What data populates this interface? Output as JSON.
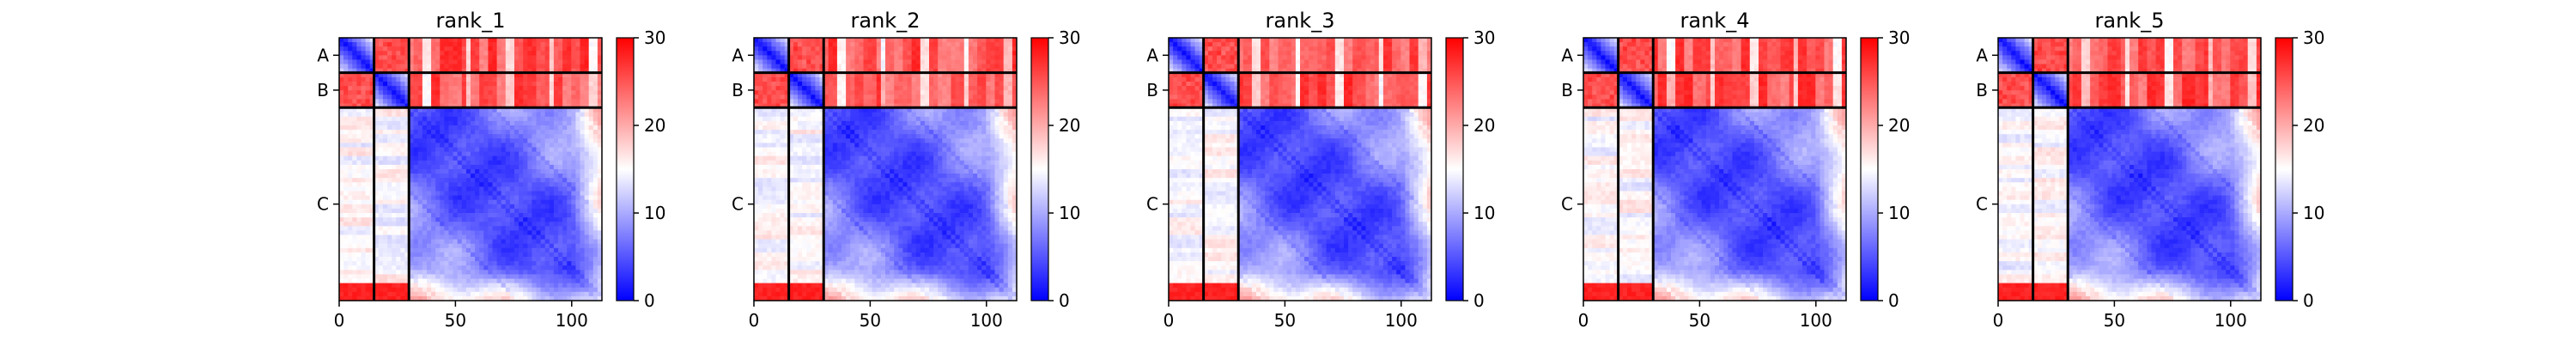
{
  "chart_data": {
    "type": "heatmap",
    "colormap": {
      "name": "bwr",
      "low": "#0000ff",
      "mid": "#ffffff",
      "high": "#ff0000"
    },
    "value_range": [
      0,
      30
    ],
    "colorbar_ticks": [
      "0",
      "10",
      "20",
      "30"
    ],
    "x_ticks": [
      "0",
      "50",
      "100"
    ],
    "x_tick_values": [
      0,
      50,
      100
    ],
    "x_range": [
      0,
      113
    ],
    "chains": [
      {
        "label": "A",
        "start": 0,
        "end": 15
      },
      {
        "label": "B",
        "start": 15,
        "end": 30
      },
      {
        "label": "C",
        "start": 30,
        "end": 113
      }
    ],
    "panels": [
      {
        "title": "rank_1"
      },
      {
        "title": "rank_2"
      },
      {
        "title": "rank_3"
      },
      {
        "title": "rank_4"
      },
      {
        "title": "rank_5"
      }
    ]
  }
}
